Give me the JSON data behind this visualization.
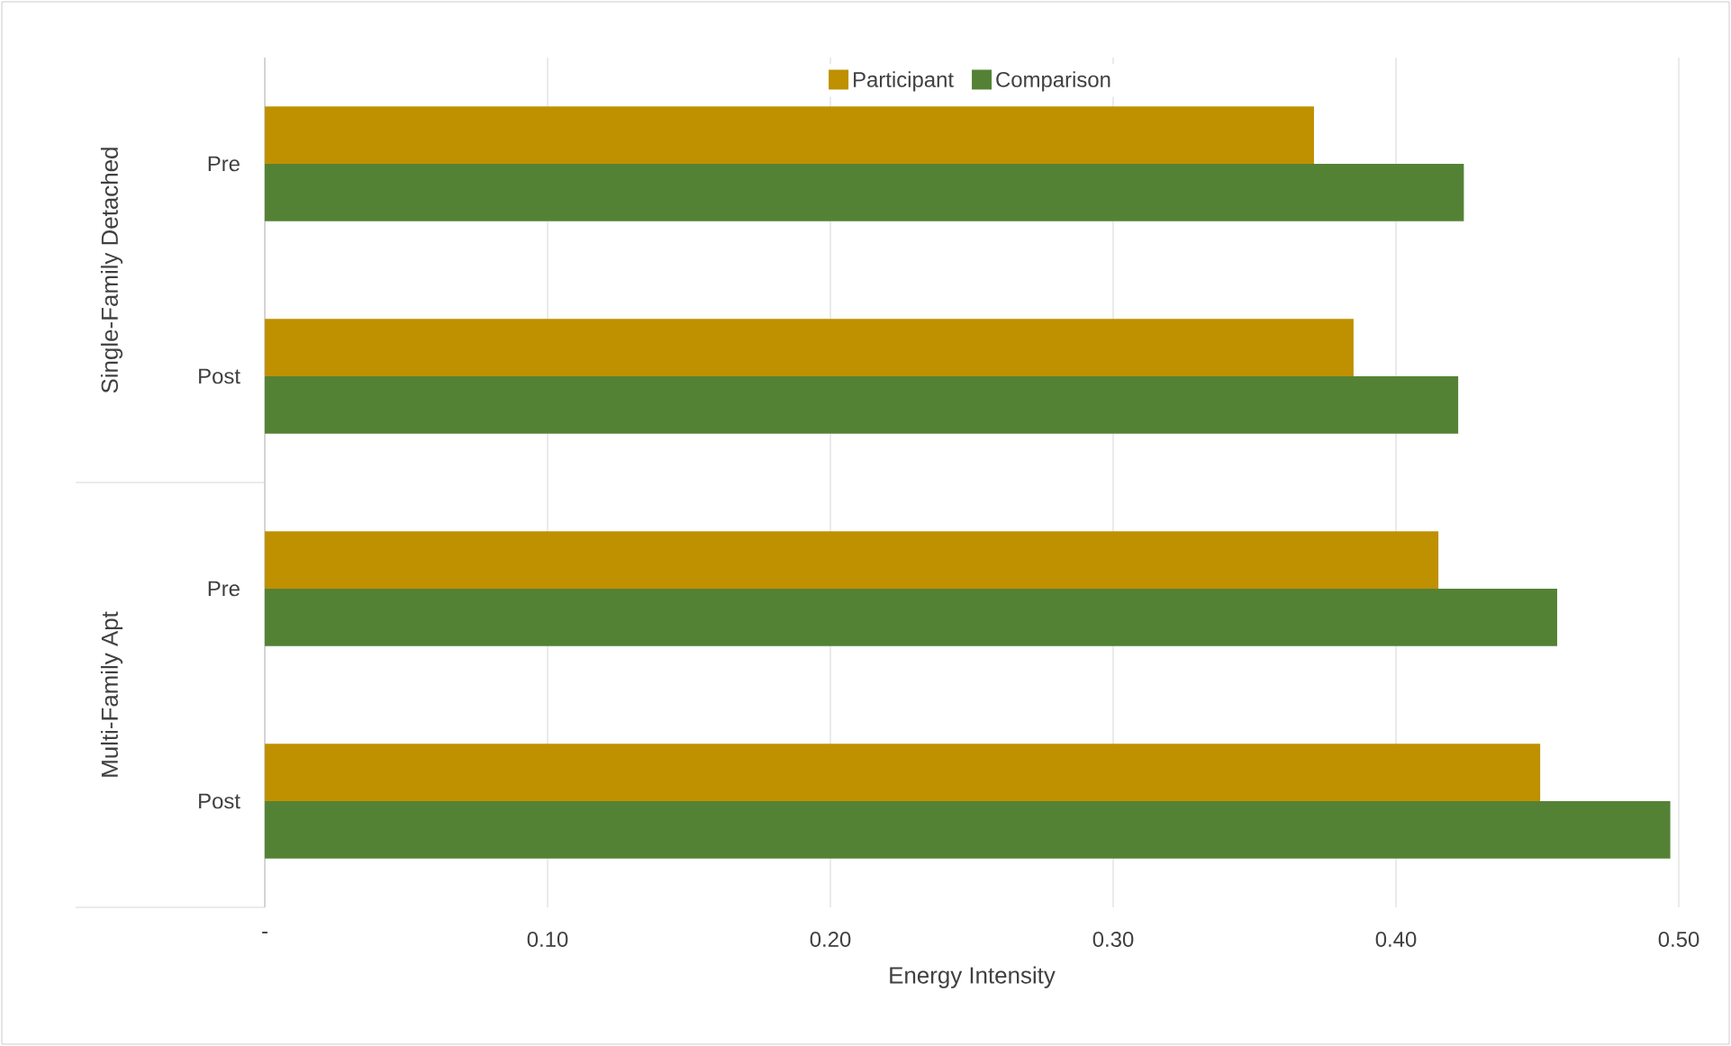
{
  "chart_data": {
    "type": "bar",
    "orientation": "horizontal",
    "xlabel": "Energy Intensity",
    "categories": [
      "Pre",
      "Post",
      "Pre",
      "Post"
    ],
    "annotations": [
      "Single-Family Detached",
      "Multi-Family Apt"
    ],
    "series": [
      {
        "name": "Participant",
        "color": "#bf9000",
        "values": [
          0.371,
          0.385,
          0.415,
          0.451
        ]
      },
      {
        "name": "Comparison",
        "color": "#548235",
        "values": [
          0.424,
          0.422,
          0.457,
          0.497
        ]
      }
    ],
    "xlim": [
      0,
      0.5
    ],
    "xticks": [
      {
        "value": 0,
        "label": "-"
      },
      {
        "value": 0.1,
        "label": "0.10"
      },
      {
        "value": 0.2,
        "label": "0.20"
      },
      {
        "value": 0.3,
        "label": "0.30"
      },
      {
        "value": 0.4,
        "label": "0.40"
      },
      {
        "value": 0.5,
        "label": "0.50"
      }
    ],
    "grid": "x",
    "legend": "top"
  }
}
